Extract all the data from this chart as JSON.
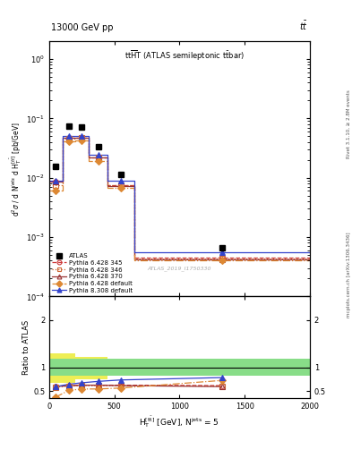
{
  "title_top": "13000 GeV pp",
  "title_top_right": "tt",
  "panel_title": "tt$\\overline{H}$T (ATLAS semileptonic t$\\bar{t}$bar)",
  "xlabel": "H$_{T}^{[tbar{t}]}$ [GeV], N$^{jets}$ = 5",
  "ylabel_main": "d$^{2}\\sigma$ / d N$^{jets}$ d H$_{T}^{[t\\bar{t}]}$ [pb/GeV]",
  "ylabel_ratio": "Ratio to ATLAS",
  "watermark": "ATLAS_2019_I1750330",
  "rivet_label": "Rivet 3.1.10, ≥ 2.8M events",
  "mcplots_label": "mcplots.cern.ch [arXiv:1306.3436]",
  "x_centers": [
    50,
    150,
    250,
    375,
    550,
    1325
  ],
  "x_edges": [
    0,
    100,
    200,
    300,
    450,
    650,
    2000
  ],
  "ATLAS_y": [
    0.0155,
    0.075,
    0.072,
    0.033,
    0.0115,
    0.00065
  ],
  "P6_345_y": [
    0.0085,
    0.048,
    0.048,
    0.022,
    0.0075,
    0.00045
  ],
  "P6_346_y": [
    0.0075,
    0.046,
    0.047,
    0.022,
    0.0075,
    0.00043
  ],
  "P6_370_y": [
    0.0085,
    0.048,
    0.048,
    0.022,
    0.0073,
    0.00042
  ],
  "P6_def_y": [
    0.006,
    0.041,
    0.042,
    0.019,
    0.0068,
    0.0004
  ],
  "P8_def_y": [
    0.009,
    0.05,
    0.05,
    0.024,
    0.009,
    0.00055
  ],
  "ratio_P6_345": [
    0.6,
    0.62,
    0.63,
    0.63,
    0.63,
    0.62
  ],
  "ratio_P6_346": [
    0.59,
    0.61,
    0.62,
    0.62,
    0.62,
    0.61
  ],
  "ratio_P6_370": [
    0.6,
    0.62,
    0.63,
    0.63,
    0.62,
    0.6
  ],
  "ratio_P6_def": [
    0.38,
    0.52,
    0.55,
    0.55,
    0.57,
    0.73
  ],
  "ratio_P8_def": [
    0.6,
    0.65,
    0.68,
    0.71,
    0.74,
    0.79
  ],
  "green_band_lo": [
    0.82,
    0.82,
    0.82,
    0.82,
    0.82,
    0.82
  ],
  "green_band_hi": [
    1.18,
    1.18,
    1.18,
    1.18,
    1.18,
    1.18
  ],
  "yellow_band_lo": [
    0.68,
    0.68,
    0.75,
    0.75,
    0.82,
    0.82
  ],
  "yellow_band_hi": [
    1.3,
    1.3,
    1.22,
    1.22,
    1.18,
    1.18
  ],
  "green_color": "#88dd88",
  "yellow_color": "#eeee55",
  "color_P6_345": "#cc3333",
  "color_P6_346": "#cc6633",
  "color_P6_370": "#993333",
  "color_P6_def": "#dd8833",
  "color_P8_def": "#3344cc",
  "ylim_main": [
    0.0001,
    2.0
  ],
  "ylim_ratio": [
    0.35,
    2.5
  ],
  "figsize": [
    3.93,
    5.12
  ],
  "dpi": 100
}
